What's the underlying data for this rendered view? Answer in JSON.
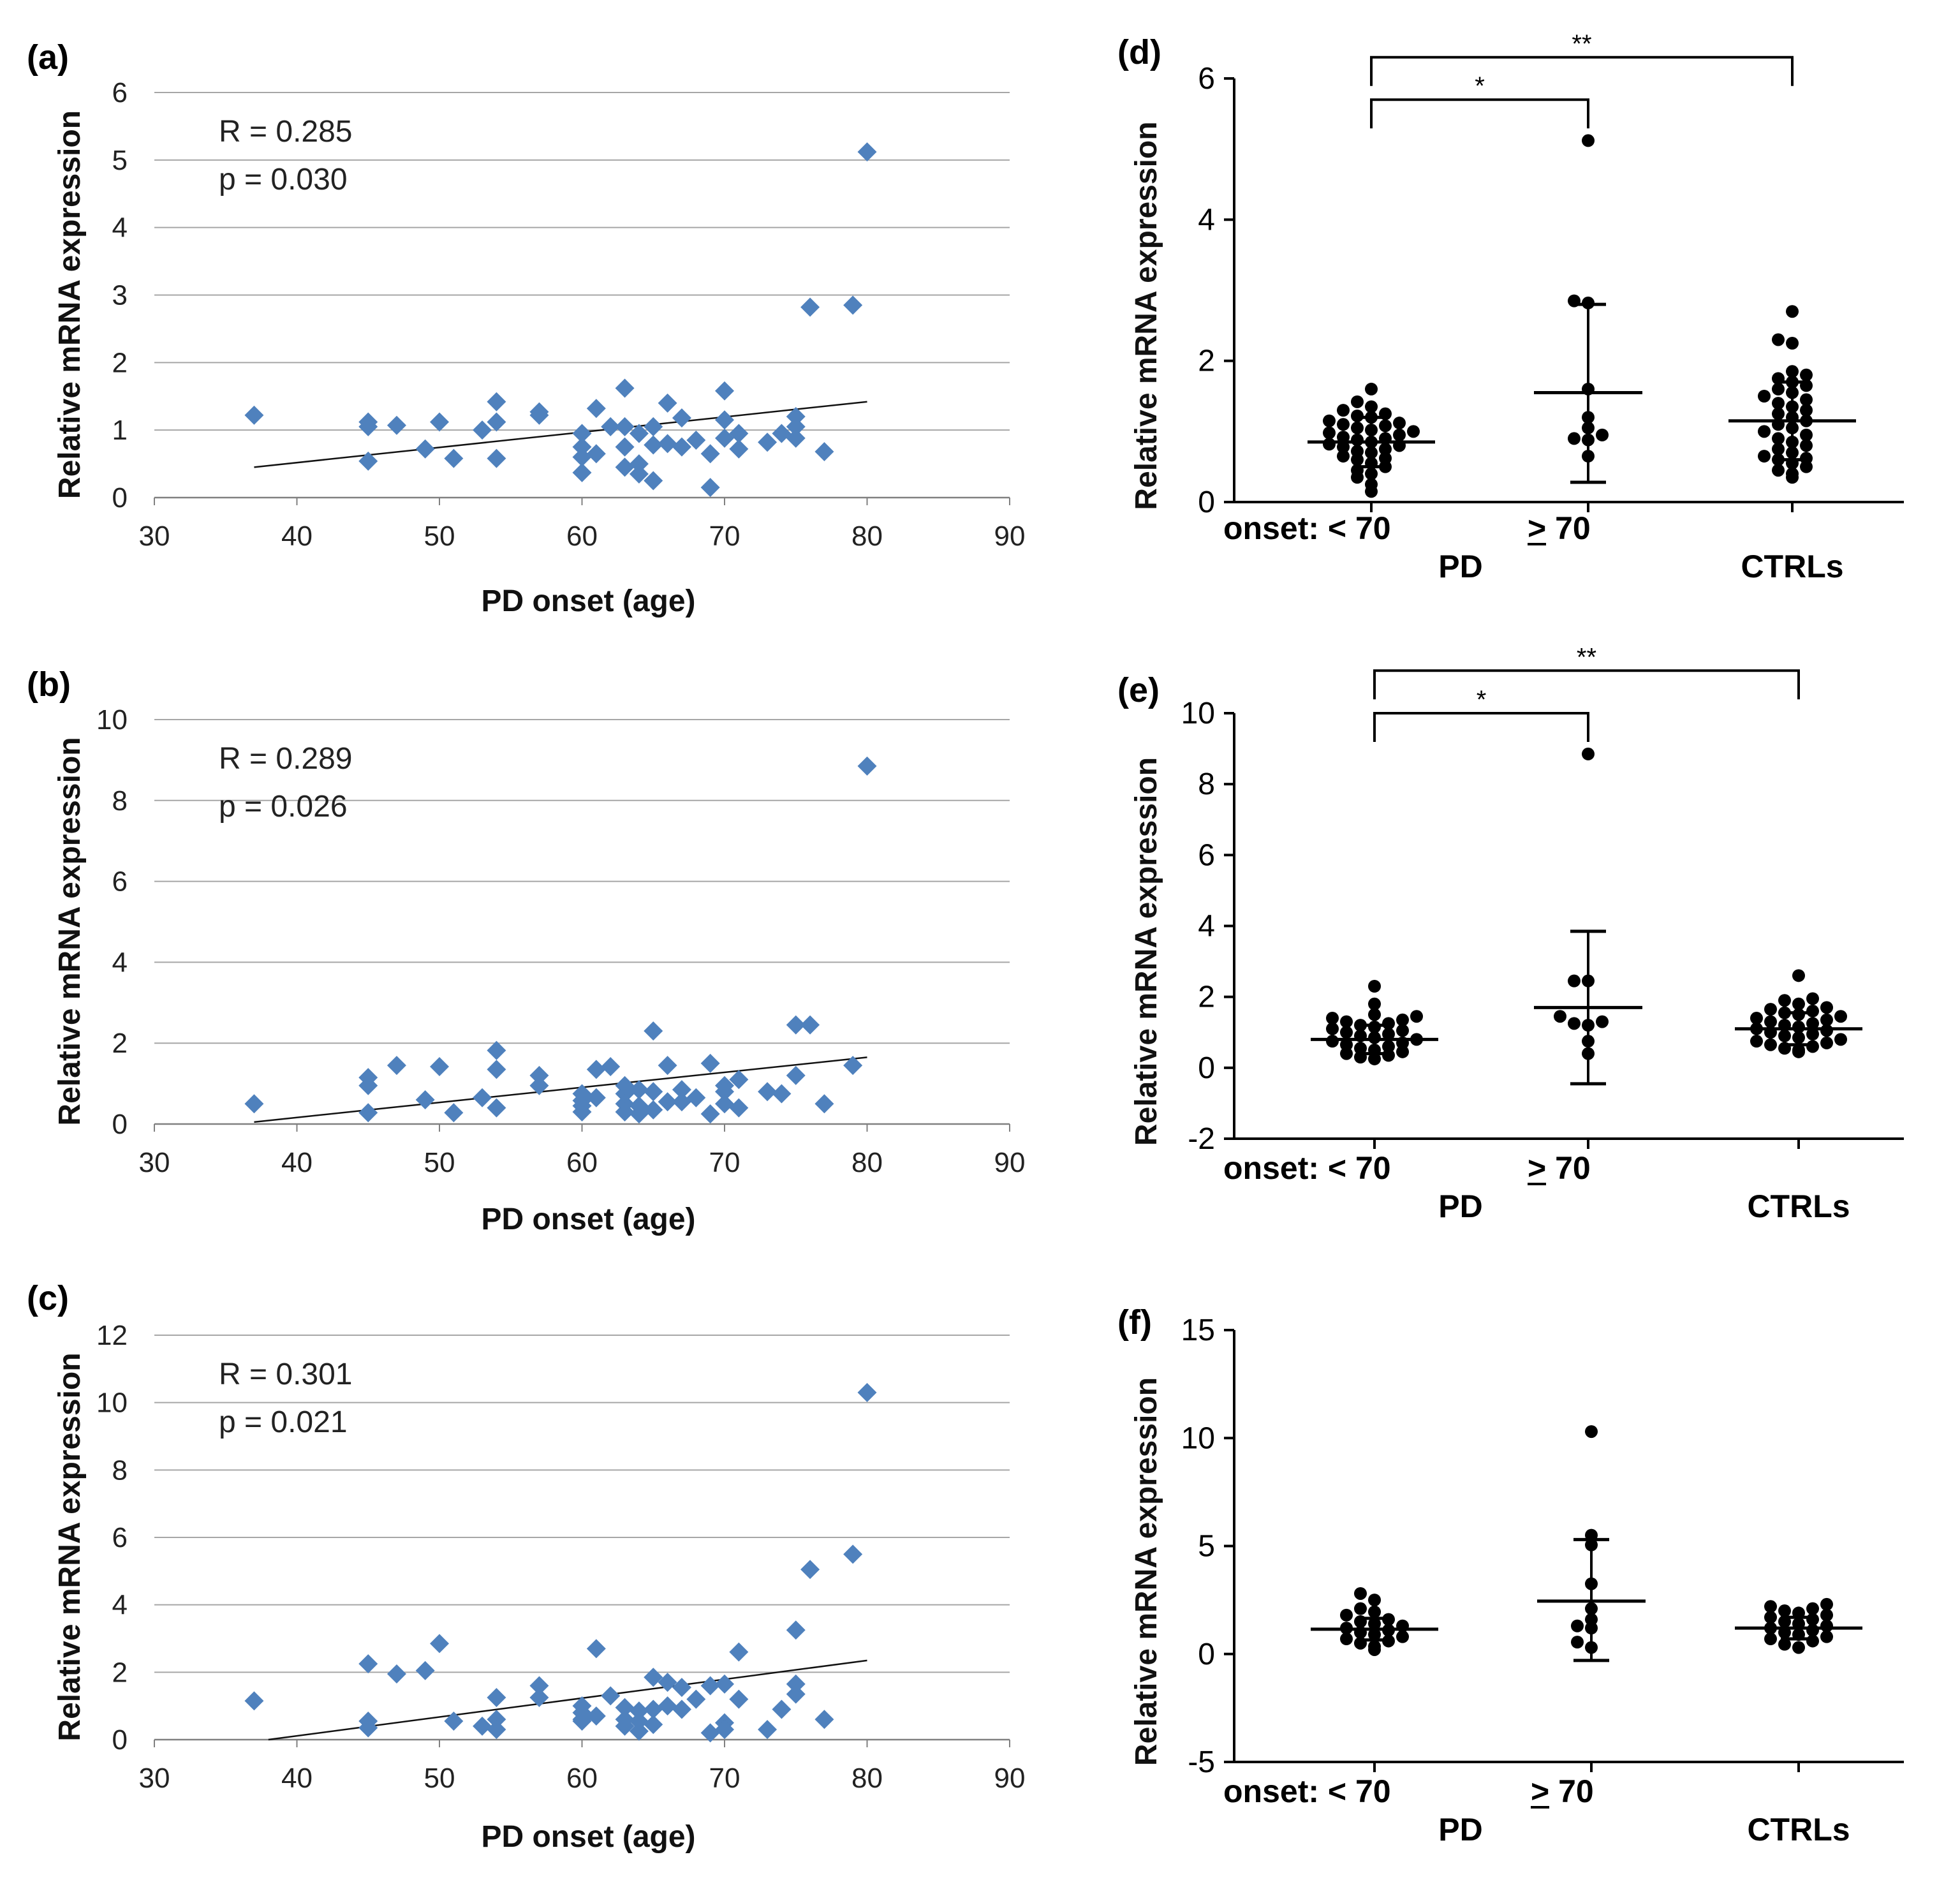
{
  "chart_data": [
    {
      "panel": "(a)",
      "type": "scatter",
      "xlabel": "PD onset (age)",
      "ylabel": "Relative mRNA expression",
      "xlim": [
        30,
        90
      ],
      "ylim": [
        0,
        6
      ],
      "xticks": [
        30,
        40,
        50,
        60,
        70,
        80,
        90
      ],
      "yticks": [
        0,
        1,
        2,
        3,
        4,
        5,
        6
      ],
      "annotations": [
        "R = 0.285",
        "p = 0.030"
      ],
      "trendline": {
        "x": [
          37,
          80
        ],
        "y": [
          0.45,
          1.42
        ]
      },
      "color": "#4f81bd",
      "points": {
        "x": [
          37,
          45,
          45,
          45,
          47,
          49,
          50,
          51,
          53,
          54,
          54,
          54,
          57,
          57,
          60,
          60,
          60,
          60,
          61,
          61,
          62,
          63,
          63,
          63,
          63,
          64,
          64,
          64,
          65,
          65,
          65,
          66,
          66,
          67,
          67,
          68,
          69,
          69,
          70,
          70,
          70,
          71,
          71,
          73,
          74,
          75,
          75,
          75,
          76,
          77,
          79,
          80
        ],
        "y": [
          1.22,
          1.12,
          1.05,
          0.54,
          1.07,
          0.72,
          1.12,
          0.58,
          1.0,
          1.42,
          1.12,
          0.58,
          1.27,
          1.22,
          0.95,
          0.75,
          0.6,
          0.37,
          1.32,
          0.65,
          1.05,
          1.62,
          1.05,
          0.75,
          0.45,
          0.95,
          0.5,
          0.35,
          1.05,
          0.78,
          0.25,
          1.4,
          0.8,
          1.18,
          0.75,
          0.85,
          0.65,
          0.15,
          1.58,
          1.15,
          0.88,
          0.95,
          0.72,
          0.82,
          0.95,
          1.2,
          1.05,
          0.88,
          2.82,
          0.68,
          2.85,
          5.12
        ]
      }
    },
    {
      "panel": "(b)",
      "type": "scatter",
      "xlabel": "PD onset (age)",
      "ylabel": "Relative mRNA expression",
      "xlim": [
        30,
        90
      ],
      "ylim": [
        0,
        10
      ],
      "xticks": [
        30,
        40,
        50,
        60,
        70,
        80,
        90
      ],
      "yticks": [
        0,
        2,
        4,
        6,
        8,
        10
      ],
      "annotations": [
        "R = 0.289",
        "p = 0.026"
      ],
      "trendline": {
        "x": [
          37,
          80
        ],
        "y": [
          0.05,
          1.65
        ]
      },
      "color": "#4f81bd",
      "points": {
        "x": [
          37,
          45,
          45,
          45,
          47,
          49,
          50,
          51,
          53,
          54,
          54,
          54,
          57,
          57,
          60,
          60,
          60,
          60,
          61,
          61,
          62,
          63,
          63,
          63,
          63,
          64,
          64,
          64,
          65,
          65,
          65,
          66,
          66,
          67,
          67,
          68,
          69,
          69,
          70,
          70,
          70,
          71,
          71,
          73,
          74,
          75,
          75,
          76,
          77,
          79,
          80
        ],
        "y": [
          0.5,
          1.15,
          0.95,
          0.28,
          1.45,
          0.6,
          1.42,
          0.28,
          0.65,
          1.82,
          1.35,
          0.4,
          1.2,
          0.95,
          0.75,
          0.58,
          0.45,
          0.3,
          1.35,
          0.65,
          1.42,
          0.95,
          0.75,
          0.5,
          0.3,
          0.85,
          0.45,
          0.25,
          2.3,
          0.8,
          0.35,
          1.45,
          0.55,
          0.85,
          0.55,
          0.65,
          1.5,
          0.25,
          0.95,
          0.8,
          0.5,
          1.1,
          0.4,
          0.8,
          0.75,
          2.45,
          1.2,
          2.45,
          0.5,
          1.45,
          8.85
        ]
      }
    },
    {
      "panel": "(c)",
      "type": "scatter",
      "xlabel": "PD onset (age)",
      "ylabel": "Relative mRNA expression",
      "xlim": [
        30,
        90
      ],
      "ylim": [
        0,
        12
      ],
      "xticks": [
        30,
        40,
        50,
        60,
        70,
        80,
        90
      ],
      "yticks": [
        0,
        2,
        4,
        6,
        8,
        10,
        12
      ],
      "annotations": [
        "R = 0.301",
        "p = 0.021"
      ],
      "trendline": {
        "x": [
          38,
          80
        ],
        "y": [
          0.0,
          2.35
        ]
      },
      "color": "#4f81bd",
      "points": {
        "x": [
          37,
          45,
          45,
          45,
          47,
          49,
          50,
          51,
          53,
          54,
          54,
          54,
          57,
          57,
          60,
          60,
          60,
          60,
          61,
          61,
          62,
          63,
          63,
          63,
          64,
          64,
          64,
          65,
          65,
          65,
          66,
          66,
          67,
          67,
          68,
          69,
          69,
          70,
          70,
          70,
          71,
          71,
          73,
          74,
          75,
          75,
          75,
          76,
          77,
          79,
          80
        ],
        "y": [
          1.15,
          2.25,
          0.55,
          0.35,
          1.95,
          2.05,
          2.85,
          0.55,
          0.4,
          1.25,
          0.6,
          0.3,
          1.6,
          1.25,
          1.0,
          0.8,
          0.55,
          0.6,
          2.7,
          0.7,
          1.3,
          0.95,
          0.6,
          0.4,
          0.85,
          0.55,
          0.25,
          1.85,
          0.9,
          0.45,
          1.7,
          1.0,
          1.55,
          0.9,
          1.2,
          1.6,
          0.2,
          1.65,
          0.5,
          0.3,
          2.6,
          1.2,
          0.3,
          0.9,
          3.25,
          1.65,
          1.35,
          5.05,
          0.6,
          5.5,
          10.3
        ]
      }
    },
    {
      "panel": "(d)",
      "type": "scatter",
      "ylabel": "Relative mRNA expression",
      "ylim": [
        0,
        6
      ],
      "yticks": [
        0,
        2,
        4,
        6
      ],
      "categories": [
        "onset: < 70",
        "> 70",
        "CTRLs"
      ],
      "group_labels": [
        "PD",
        "CTRLs"
      ],
      "groups": [
        {
          "name": "onset: < 70",
          "mean": 0.85,
          "sd_low": 0.5,
          "sd_high": 1.2,
          "values": [
            0.15,
            0.25,
            0.35,
            0.4,
            0.45,
            0.5,
            0.55,
            0.6,
            0.62,
            0.65,
            0.7,
            0.72,
            0.75,
            0.78,
            0.8,
            0.82,
            0.85,
            0.88,
            0.9,
            0.92,
            0.95,
            0.98,
            1.0,
            1.02,
            1.05,
            1.08,
            1.1,
            1.12,
            1.15,
            1.2,
            1.22,
            1.25,
            1.3,
            1.35,
            1.42,
            1.6
          ]
        },
        {
          "name": "> 70",
          "mean": 1.55,
          "sd_low": 0.28,
          "sd_high": 2.8,
          "values": [
            0.65,
            0.88,
            0.9,
            0.95,
            1.05,
            1.2,
            1.6,
            2.82,
            2.85,
            5.12
          ]
        },
        {
          "name": "CTRLs",
          "mean": 1.15,
          "sd_low": 0.6,
          "sd_high": 1.7,
          "values": [
            0.35,
            0.4,
            0.45,
            0.5,
            0.55,
            0.6,
            0.62,
            0.65,
            0.7,
            0.75,
            0.8,
            0.85,
            0.9,
            0.95,
            1.0,
            1.05,
            1.1,
            1.15,
            1.2,
            1.25,
            1.3,
            1.35,
            1.4,
            1.45,
            1.5,
            1.55,
            1.6,
            1.65,
            1.7,
            1.75,
            1.8,
            1.85,
            2.25,
            2.3,
            2.7
          ]
        }
      ],
      "significance": [
        {
          "from": 0,
          "to": 1,
          "label": "*",
          "y": 5.7
        },
        {
          "from": 0,
          "to": 2,
          "label": "**",
          "y": 6.3
        }
      ]
    },
    {
      "panel": "(e)",
      "type": "scatter",
      "ylabel": "Relative mRNA expression",
      "ylim": [
        -2,
        10
      ],
      "yticks": [
        -2,
        0,
        2,
        4,
        6,
        8,
        10
      ],
      "categories": [
        "onset: < 70",
        "> 70",
        "CTRLs"
      ],
      "group_labels": [
        "PD",
        "CTRLs"
      ],
      "groups": [
        {
          "name": "onset: < 70",
          "mean": 0.8,
          "sd_low": 0.4,
          "sd_high": 1.2,
          "values": [
            0.25,
            0.3,
            0.35,
            0.4,
            0.45,
            0.5,
            0.55,
            0.6,
            0.65,
            0.7,
            0.75,
            0.8,
            0.85,
            0.9,
            0.95,
            1.0,
            1.05,
            1.1,
            1.15,
            1.2,
            1.25,
            1.3,
            1.35,
            1.4,
            1.45,
            1.5,
            1.8,
            2.3
          ]
        },
        {
          "name": "> 70",
          "mean": 1.7,
          "sd_low": -0.45,
          "sd_high": 3.85,
          "values": [
            0.4,
            0.75,
            1.2,
            1.25,
            1.3,
            1.45,
            2.45,
            2.45,
            8.85
          ]
        },
        {
          "name": "CTRLs",
          "mean": 1.1,
          "sd_low": 0.65,
          "sd_high": 1.55,
          "values": [
            0.45,
            0.5,
            0.55,
            0.6,
            0.65,
            0.7,
            0.75,
            0.8,
            0.85,
            0.9,
            0.95,
            1.0,
            1.05,
            1.1,
            1.15,
            1.2,
            1.25,
            1.3,
            1.35,
            1.4,
            1.45,
            1.5,
            1.55,
            1.6,
            1.65,
            1.7,
            1.8,
            1.9,
            1.95,
            2.6
          ]
        }
      ],
      "significance": [
        {
          "from": 0,
          "to": 1,
          "label": "*",
          "y": 10.0
        },
        {
          "from": 0,
          "to": 2,
          "label": "**",
          "y": 11.2
        }
      ]
    },
    {
      "panel": "(f)",
      "type": "scatter",
      "ylabel": "Relative mRNA expression",
      "ylim": [
        -5,
        15
      ],
      "yticks": [
        -5,
        0,
        5,
        10,
        15
      ],
      "categories": [
        "onset: < 70",
        "> 70",
        "CTRLs"
      ],
      "group_labels": [
        "PD",
        "CTRLs"
      ],
      "groups": [
        {
          "name": "onset: < 70",
          "mean": 1.15,
          "sd_low": 0.65,
          "sd_high": 1.65,
          "values": [
            0.2,
            0.35,
            0.5,
            0.6,
            0.7,
            0.8,
            0.9,
            1.0,
            1.1,
            1.2,
            1.3,
            1.4,
            1.5,
            1.6,
            1.8,
            1.95,
            2.1,
            2.5,
            2.8
          ]
        },
        {
          "name": "> 70",
          "mean": 2.45,
          "sd_low": -0.3,
          "sd_high": 5.3,
          "values": [
            0.3,
            0.55,
            1.2,
            1.3,
            1.6,
            2.1,
            3.25,
            5.05,
            5.5,
            10.3
          ]
        },
        {
          "name": "CTRLs",
          "mean": 1.2,
          "sd_low": 0.7,
          "sd_high": 1.7,
          "values": [
            0.3,
            0.45,
            0.6,
            0.7,
            0.8,
            0.9,
            1.0,
            1.1,
            1.2,
            1.3,
            1.4,
            1.5,
            1.6,
            1.7,
            1.8,
            1.9,
            2.0,
            2.1,
            2.2,
            2.3
          ]
        }
      ],
      "significance": []
    }
  ]
}
